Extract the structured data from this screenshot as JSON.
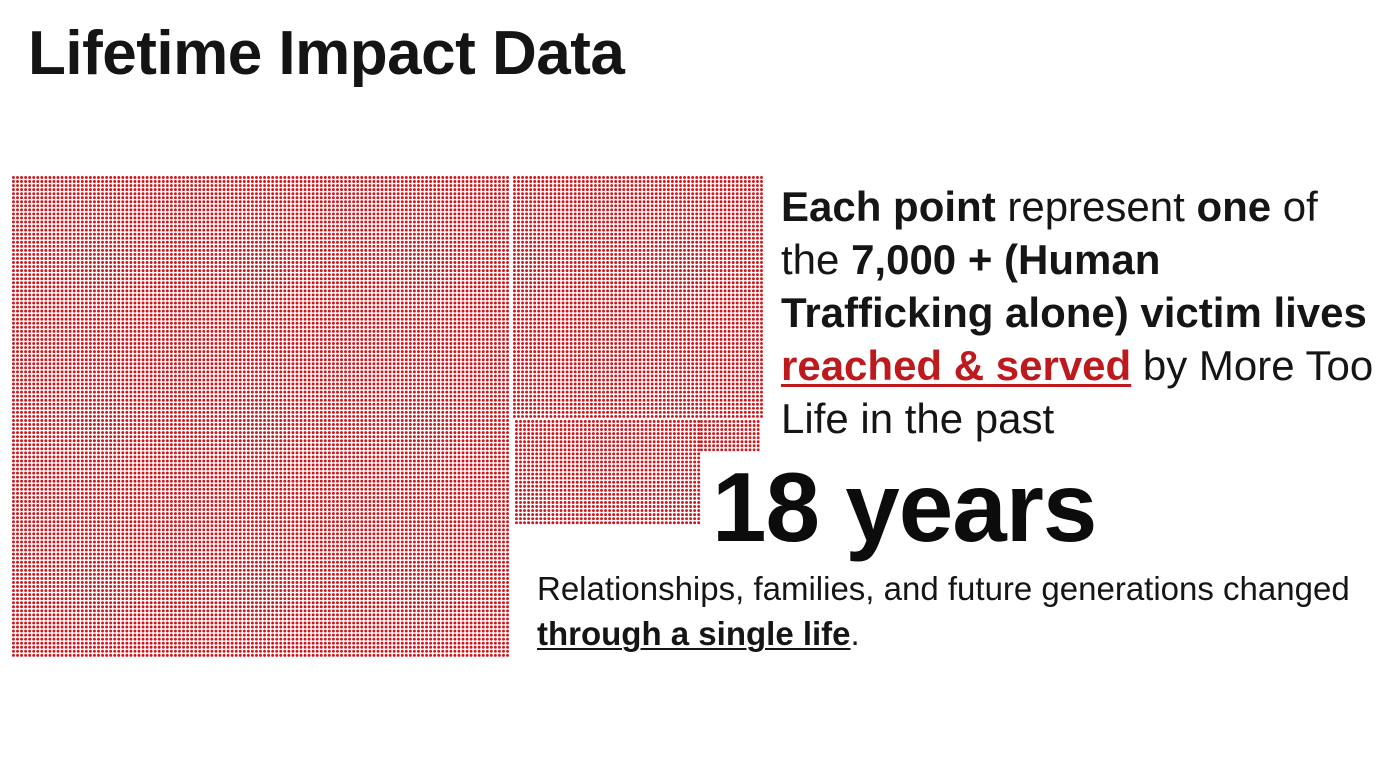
{
  "title": "Lifetime Impact Data",
  "dot_color": "#d0161c",
  "dot_count_note": "7,000 +",
  "explanation": {
    "part1_bold": "Each point",
    "part2": " represent ",
    "part3_bold": "one",
    "part4": " of the ",
    "part5_bold": "7,000 + (Human Trafficking alone) victim lives",
    "part6_space": " ",
    "part7_highlight": "reached & served",
    "part8": " by More Too Life in the past"
  },
  "years": "18 years",
  "relationships": {
    "text": "Relationships, families, and future generations changed ",
    "underlined": "through a single life",
    "end": "."
  },
  "accent_color": "#be1a1e"
}
